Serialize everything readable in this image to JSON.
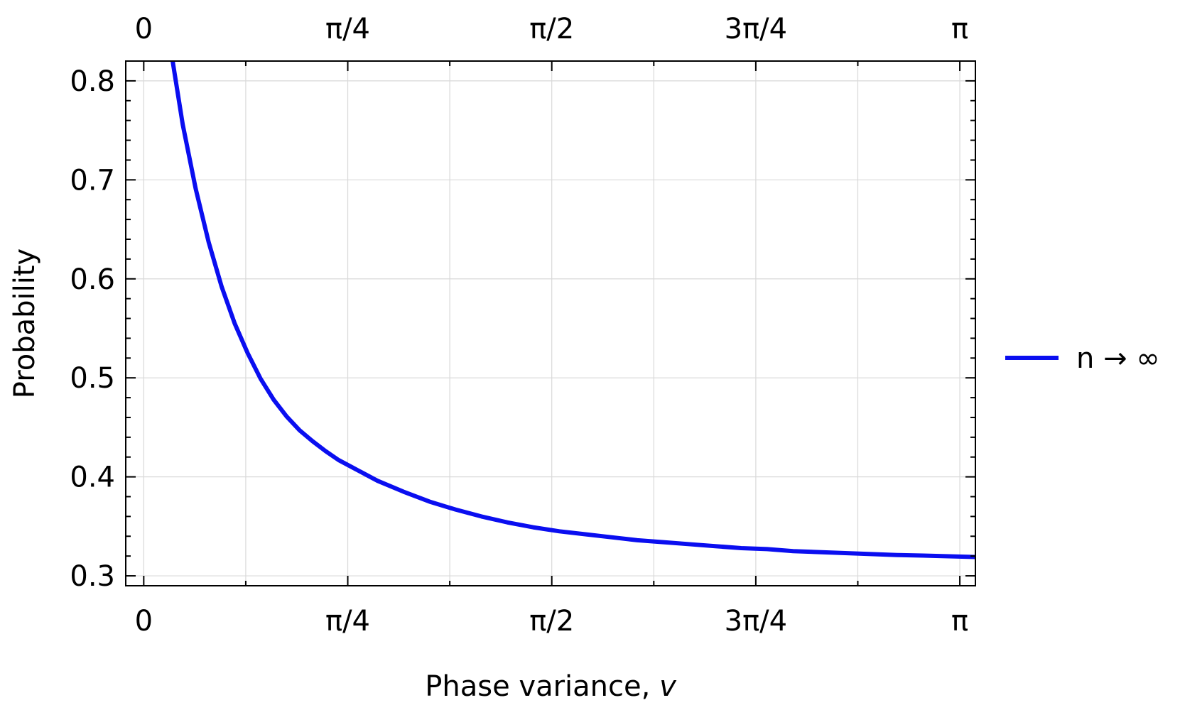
{
  "chart_data": {
    "type": "line",
    "title": "",
    "xlabel": "Phase variance, ",
    "xlabel_var": "v",
    "ylabel": "Probability",
    "xlim": [
      -0.0693,
      3.2016
    ],
    "ylim": [
      0.29,
      0.82
    ],
    "x_ticks": [
      {
        "value": 0,
        "label": "0"
      },
      {
        "value": 0.7854,
        "label": "π/4"
      },
      {
        "value": 1.5708,
        "label": "π/2"
      },
      {
        "value": 2.3562,
        "label": "3π/4"
      },
      {
        "value": 3.1416,
        "label": "π"
      }
    ],
    "x_grid_values": [
      0.3927,
      1.1781,
      1.9635,
      2.7489
    ],
    "y_ticks": [
      {
        "value": 0.3,
        "label": "0.3"
      },
      {
        "value": 0.4,
        "label": "0.4"
      },
      {
        "value": 0.5,
        "label": "0.5"
      },
      {
        "value": 0.6,
        "label": "0.6"
      },
      {
        "value": 0.7,
        "label": "0.7"
      },
      {
        "value": 0.8,
        "label": "0.8"
      }
    ],
    "y_minor_step": 0.02,
    "x_minor_step": 0.3927,
    "grid": true,
    "top_axis_labels": true,
    "legend_position": "right",
    "series": [
      {
        "name": "n → ∞",
        "color": "#0a0ef0",
        "x": [
          0.11,
          0.15,
          0.2,
          0.25,
          0.3,
          0.35,
          0.4,
          0.45,
          0.5,
          0.55,
          0.6,
          0.65,
          0.7,
          0.75,
          0.8,
          0.9,
          1.0,
          1.1,
          1.2,
          1.3,
          1.4,
          1.5,
          1.6,
          1.7,
          1.8,
          1.9,
          2.0,
          2.1,
          2.2,
          2.3,
          2.4,
          2.5,
          2.6,
          2.7,
          2.8,
          2.9,
          3.0,
          3.1,
          3.2
        ],
        "y": [
          0.822,
          0.756,
          0.691,
          0.637,
          0.592,
          0.555,
          0.525,
          0.499,
          0.478,
          0.461,
          0.447,
          0.436,
          0.426,
          0.417,
          0.41,
          0.396,
          0.385,
          0.375,
          0.367,
          0.36,
          0.354,
          0.349,
          0.345,
          0.342,
          0.339,
          0.336,
          0.334,
          0.332,
          0.33,
          0.328,
          0.327,
          0.325,
          0.324,
          0.323,
          0.322,
          0.321,
          0.3205,
          0.3198,
          0.319
        ]
      }
    ]
  }
}
